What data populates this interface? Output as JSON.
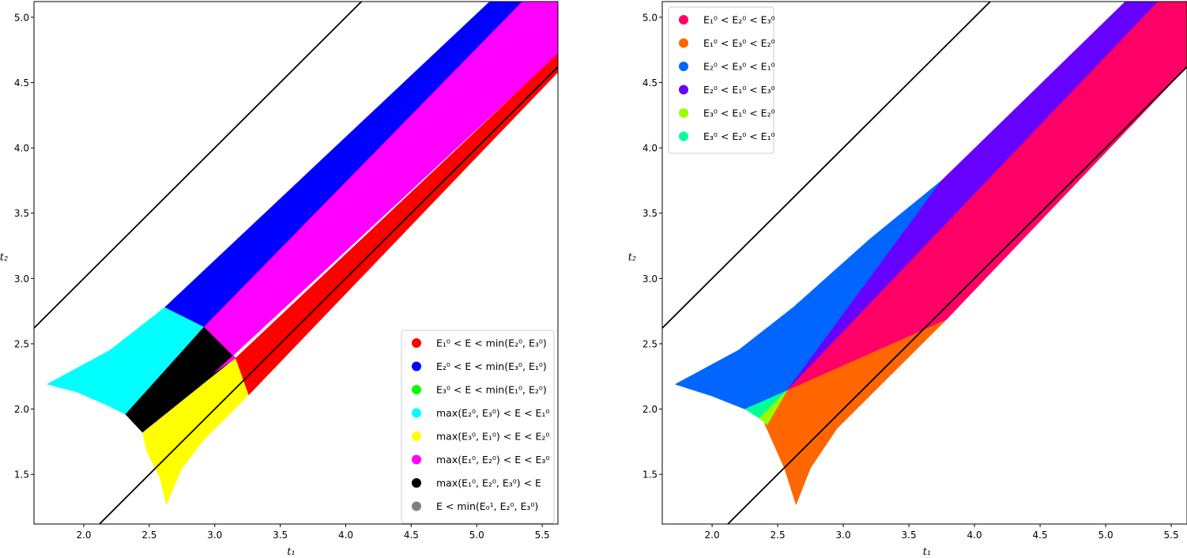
{
  "chart_data": [
    {
      "type": "region",
      "title": "",
      "xlabel": "t₁",
      "ylabel": "t₂",
      "xlim": [
        1.62,
        5.62
      ],
      "ylim": [
        1.12,
        5.12
      ],
      "xticks": [
        "2.0",
        "2.5",
        "3.0",
        "3.5",
        "4.0",
        "4.5",
        "5.0",
        "5.5"
      ],
      "yticks": [
        "1.5",
        "2.0",
        "2.5",
        "3.0",
        "3.5",
        "4.0",
        "4.5",
        "5.0"
      ],
      "legend_position": "lower-right",
      "lines": [
        {
          "x": [
            1.62,
            4.12
          ],
          "y": [
            2.62,
            5.12
          ],
          "color": "#000000"
        },
        {
          "x": [
            2.12,
            5.62
          ],
          "y": [
            1.12,
            4.62
          ],
          "color": "#000000"
        }
      ],
      "regions": [
        {
          "name": "cyan",
          "color": "#00ffff",
          "points": [
            [
              1.72,
              2.19
            ],
            [
              2.2,
              2.45
            ],
            [
              2.62,
              2.78
            ],
            [
              2.92,
              2.63
            ],
            [
              2.32,
              1.96
            ],
            [
              2.2,
              2.02
            ],
            [
              1.95,
              2.13
            ]
          ]
        },
        {
          "name": "black",
          "color": "#000000",
          "points": [
            [
              2.32,
              1.96
            ],
            [
              2.92,
              2.63
            ],
            [
              3.16,
              2.39
            ],
            [
              2.45,
              1.82
            ]
          ]
        },
        {
          "name": "yellow",
          "color": "#ffff00",
          "points": [
            [
              2.45,
              1.82
            ],
            [
              3.16,
              2.39
            ],
            [
              3.26,
              2.11
            ],
            [
              2.92,
              1.77
            ],
            [
              2.75,
              1.55
            ],
            [
              2.63,
              1.27
            ],
            [
              2.58,
              1.48
            ],
            [
              2.48,
              1.68
            ]
          ]
        },
        {
          "name": "blue",
          "color": "#0000ff",
          "points": [
            [
              2.62,
              2.78
            ],
            [
              5.1,
              5.12
            ],
            [
              5.35,
              5.12
            ],
            [
              2.92,
              2.63
            ]
          ]
        },
        {
          "name": "magenta",
          "color": "#ff00ff",
          "points": [
            [
              2.92,
              2.63
            ],
            [
              5.35,
              5.12
            ],
            [
              5.62,
              5.12
            ],
            [
              5.62,
              4.72
            ],
            [
              3.0,
              2.28
            ],
            [
              3.16,
              2.39
            ]
          ]
        },
        {
          "name": "red",
          "color": "#ff0000",
          "points": [
            [
              3.16,
              2.39
            ],
            [
              5.62,
              4.72
            ],
            [
              5.62,
              4.58
            ],
            [
              3.26,
              2.11
            ]
          ]
        }
      ],
      "legend": [
        {
          "color": "#ff0000",
          "label_main": "E₁⁰ < E < min(E₂⁰, E₃⁰)"
        },
        {
          "color": "#0000ff",
          "label_main": "E₂⁰ < E < min(E₃⁰, E₁⁰)"
        },
        {
          "color": "#00ff00",
          "label_main": "E₃⁰ < E < min(E₁⁰, E₂⁰)"
        },
        {
          "color": "#00ffff",
          "label_main": "max(E₂⁰, E₃⁰) < E < E₁⁰"
        },
        {
          "color": "#ffff00",
          "label_main": "max(E₃⁰, E₁⁰) < E < E₂⁰"
        },
        {
          "color": "#ff00ff",
          "label_main": "max(E₁⁰, E₂⁰) < E < E₃⁰"
        },
        {
          "color": "#000000",
          "label_main": "max(E₁⁰, E₂⁰, E₃⁰) < E"
        },
        {
          "color": "#808080",
          "label_main": "E < min(E₀¹, E₂⁰, E₃⁰)"
        }
      ]
    },
    {
      "type": "region",
      "title": "",
      "xlabel": "t₁",
      "ylabel": "t₂",
      "xlim": [
        1.62,
        5.62
      ],
      "ylim": [
        1.12,
        5.12
      ],
      "xticks": [
        "2.0",
        "2.5",
        "3.0",
        "3.5",
        "4.0",
        "4.5",
        "5.0",
        "5.5"
      ],
      "yticks": [
        "1.5",
        "2.0",
        "2.5",
        "3.0",
        "3.5",
        "4.0",
        "4.5",
        "5.0"
      ],
      "legend_position": "upper-left",
      "lines": [
        {
          "x": [
            1.62,
            4.12
          ],
          "y": [
            2.62,
            5.12
          ],
          "color": "#000000"
        },
        {
          "x": [
            2.12,
            5.62
          ],
          "y": [
            1.12,
            4.62
          ],
          "color": "#000000"
        }
      ],
      "regions": [
        {
          "name": "azure",
          "color": "#0066ff",
          "points": [
            [
              1.72,
              2.19
            ],
            [
              2.2,
              2.45
            ],
            [
              2.62,
              2.78
            ],
            [
              3.2,
              3.3
            ],
            [
              3.75,
              3.75
            ],
            [
              2.57,
              2.14
            ],
            [
              2.25,
              2.0
            ],
            [
              2.0,
              2.1
            ]
          ]
        },
        {
          "name": "violet",
          "color": "#6600ff",
          "points": [
            [
              3.75,
              3.75
            ],
            [
              5.15,
              5.12
            ],
            [
              5.4,
              5.12
            ],
            [
              2.57,
              2.14
            ]
          ]
        },
        {
          "name": "rose",
          "color": "#ff0066",
          "points": [
            [
              2.57,
              2.14
            ],
            [
              5.4,
              5.12
            ],
            [
              5.62,
              5.12
            ],
            [
              5.62,
              4.62
            ],
            [
              3.78,
              2.68
            ]
          ]
        },
        {
          "name": "orange",
          "color": "#ff6600",
          "points": [
            [
              2.57,
              2.14
            ],
            [
              3.78,
              2.68
            ],
            [
              3.3,
              2.2
            ],
            [
              2.95,
              1.85
            ],
            [
              2.75,
              1.55
            ],
            [
              2.64,
              1.27
            ],
            [
              2.55,
              1.55
            ],
            [
              2.4,
              1.89
            ]
          ]
        },
        {
          "name": "spring",
          "color": "#00ff99",
          "points": [
            [
              2.25,
              2.0
            ],
            [
              2.57,
              2.14
            ],
            [
              2.36,
              1.93
            ]
          ]
        },
        {
          "name": "lime",
          "color": "#99ff00",
          "points": [
            [
              2.36,
              1.93
            ],
            [
              2.57,
              2.14
            ],
            [
              2.42,
              1.88
            ]
          ]
        }
      ],
      "legend": [
        {
          "color": "#ff0066",
          "label_main": "E₁⁰ < E₂⁰ < E₃⁰"
        },
        {
          "color": "#ff6600",
          "label_main": "E₁⁰ < E₃⁰ < E₂⁰"
        },
        {
          "color": "#0066ff",
          "label_main": "E₂⁰ < E₃⁰ < E₁⁰"
        },
        {
          "color": "#6600ff",
          "label_main": "E₂⁰ < E₁⁰ < E₃⁰"
        },
        {
          "color": "#99ff00",
          "label_main": "E₃⁰ < E₁⁰ < E₂⁰"
        },
        {
          "color": "#00ff99",
          "label_main": "E₃⁰ < E₂⁰ < E₁⁰"
        }
      ]
    }
  ]
}
